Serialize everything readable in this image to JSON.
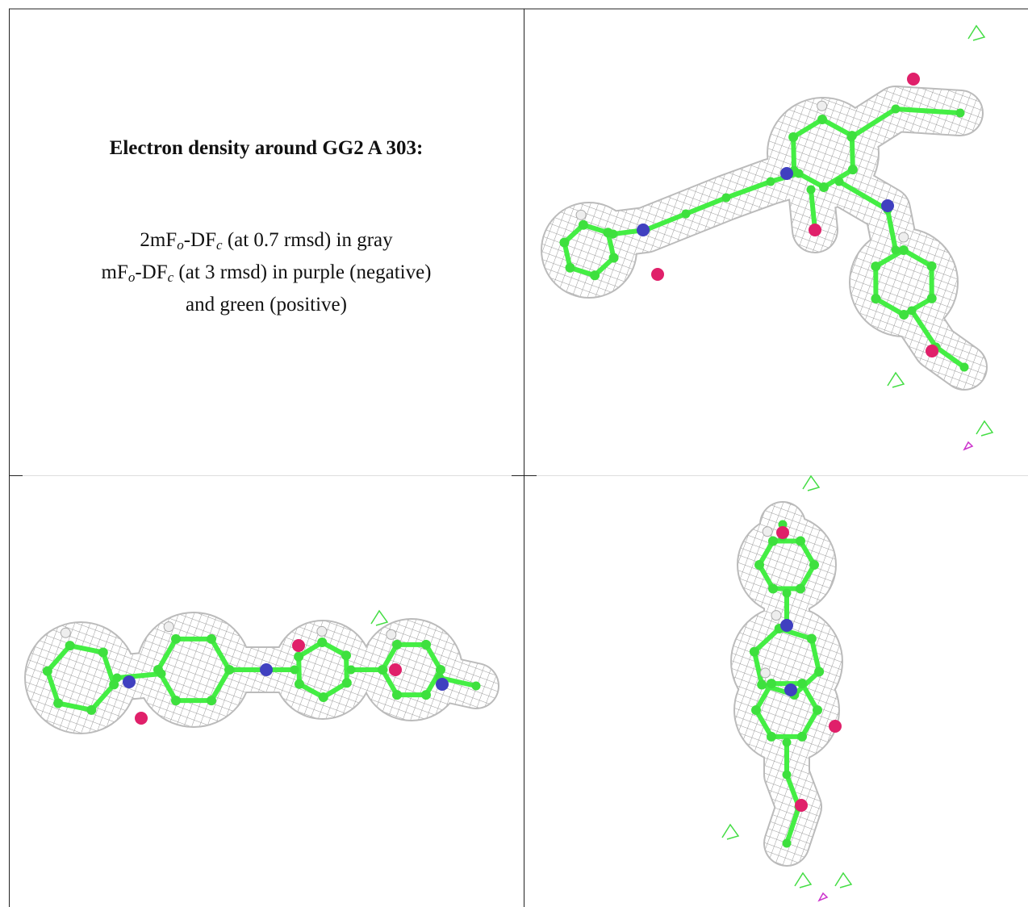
{
  "caption": {
    "title": "Electron density around GG2 A 303:",
    "lines": [
      [
        "2mF",
        "o",
        "-DF",
        "c",
        " (at 0.7 rmsd) in gray"
      ],
      [
        "mF",
        "o",
        "-DF",
        "c",
        " (at 3 rmsd) in purple (negative)"
      ],
      [
        "and green (positive)"
      ]
    ]
  }
}
